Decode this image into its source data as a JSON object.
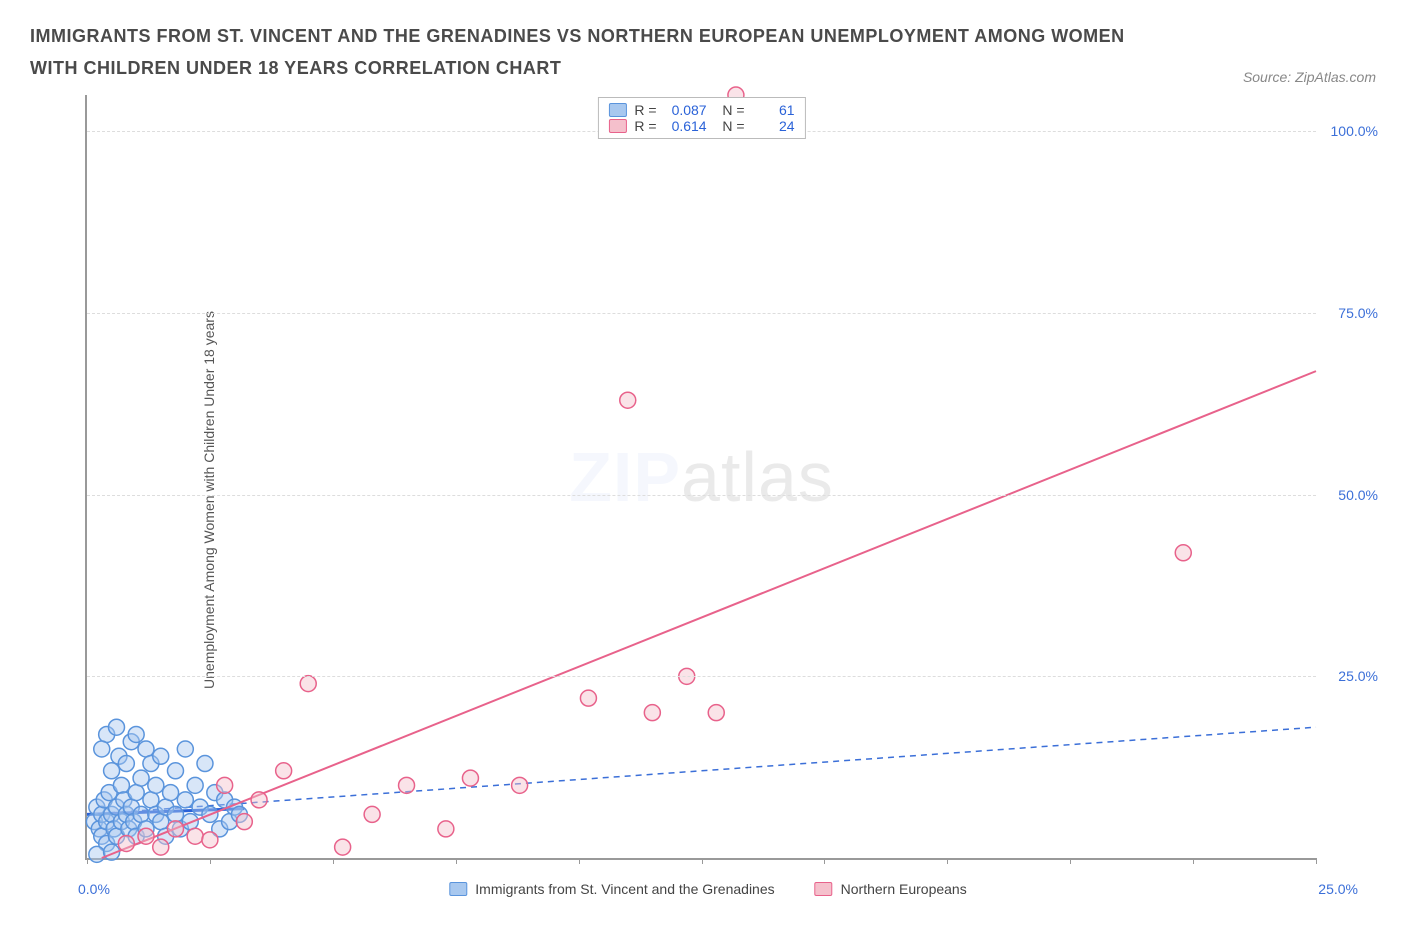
{
  "header": {
    "title": "IMMIGRANTS FROM ST. VINCENT AND THE GRENADINES VS NORTHERN EUROPEAN UNEMPLOYMENT AMONG WOMEN WITH CHILDREN UNDER 18 YEARS CORRELATION CHART",
    "source": "Source: ZipAtlas.com"
  },
  "chart": {
    "type": "scatter",
    "ylabel": "Unemployment Among Women with Children Under 18 years",
    "xlim": [
      0,
      25
    ],
    "ylim": [
      0,
      105
    ],
    "xticks": [
      0,
      2.5,
      5,
      7.5,
      10,
      12.5,
      15,
      17.5,
      20,
      22.5,
      25
    ],
    "yticks": [
      25,
      50,
      75,
      100
    ],
    "ytick_labels": [
      "25.0%",
      "50.0%",
      "75.0%",
      "100.0%"
    ],
    "x_min_label": "0.0%",
    "x_max_label": "25.0%",
    "background_color": "#ffffff",
    "grid_color": "#dddddd",
    "axis_color": "#999999",
    "marker_radius": 8,
    "marker_stroke_width": 1.5,
    "series": [
      {
        "name": "Immigrants from St. Vincent and the Grenadines",
        "color_fill": "#a8c8ef",
        "color_stroke": "#5a94dc",
        "fill_opacity": 0.45,
        "R": "0.087",
        "N": "61",
        "trend": {
          "x1": 0,
          "y1": 6,
          "x2": 25,
          "y2": 18,
          "dash": "6,5",
          "width": 1.5,
          "color": "#3b6fd8"
        },
        "trend_solid_short": {
          "x1": 0,
          "y1": 6,
          "x2": 3.2,
          "y2": 6.8,
          "width": 3,
          "color": "#2a62d8"
        },
        "points": [
          [
            0.15,
            5
          ],
          [
            0.2,
            7
          ],
          [
            0.25,
            4
          ],
          [
            0.3,
            6
          ],
          [
            0.3,
            3
          ],
          [
            0.35,
            8
          ],
          [
            0.4,
            5
          ],
          [
            0.4,
            2
          ],
          [
            0.45,
            9
          ],
          [
            0.5,
            6
          ],
          [
            0.5,
            12
          ],
          [
            0.55,
            4
          ],
          [
            0.6,
            7
          ],
          [
            0.6,
            3
          ],
          [
            0.65,
            14
          ],
          [
            0.7,
            5
          ],
          [
            0.7,
            10
          ],
          [
            0.75,
            8
          ],
          [
            0.8,
            6
          ],
          [
            0.8,
            13
          ],
          [
            0.85,
            4
          ],
          [
            0.9,
            16
          ],
          [
            0.9,
            7
          ],
          [
            0.95,
            5
          ],
          [
            1.0,
            9
          ],
          [
            1.0,
            3
          ],
          [
            1.1,
            11
          ],
          [
            1.1,
            6
          ],
          [
            1.2,
            15
          ],
          [
            1.2,
            4
          ],
          [
            1.3,
            8
          ],
          [
            1.3,
            13
          ],
          [
            1.4,
            6
          ],
          [
            1.4,
            10
          ],
          [
            1.5,
            5
          ],
          [
            1.5,
            14
          ],
          [
            1.6,
            7
          ],
          [
            1.6,
            3
          ],
          [
            1.7,
            9
          ],
          [
            1.8,
            6
          ],
          [
            1.8,
            12
          ],
          [
            1.9,
            4
          ],
          [
            2.0,
            8
          ],
          [
            2.0,
            15
          ],
          [
            2.1,
            5
          ],
          [
            2.2,
            10
          ],
          [
            2.3,
            7
          ],
          [
            2.4,
            13
          ],
          [
            2.5,
            6
          ],
          [
            2.6,
            9
          ],
          [
            2.7,
            4
          ],
          [
            2.8,
            8
          ],
          [
            2.9,
            5
          ],
          [
            3.0,
            7
          ],
          [
            3.1,
            6
          ],
          [
            0.4,
            17
          ],
          [
            0.6,
            18
          ],
          [
            1.0,
            17
          ],
          [
            0.3,
            15
          ],
          [
            0.2,
            0.5
          ],
          [
            0.5,
            0.8
          ]
        ]
      },
      {
        "name": "Northern Europeans",
        "color_fill": "#f5c0cc",
        "color_stroke": "#e8628b",
        "fill_opacity": 0.45,
        "R": "0.614",
        "N": "24",
        "trend": {
          "x1": 0.3,
          "y1": 0,
          "x2": 25,
          "y2": 67,
          "dash": "none",
          "width": 2,
          "color": "#e8628b"
        },
        "points": [
          [
            0.8,
            2
          ],
          [
            1.2,
            3
          ],
          [
            1.5,
            1.5
          ],
          [
            1.8,
            4
          ],
          [
            2.2,
            3
          ],
          [
            2.5,
            2.5
          ],
          [
            2.8,
            10
          ],
          [
            3.2,
            5
          ],
          [
            3.5,
            8
          ],
          [
            4.5,
            24
          ],
          [
            5.2,
            1.5
          ],
          [
            5.8,
            6
          ],
          [
            6.5,
            10
          ],
          [
            7.3,
            4
          ],
          [
            7.8,
            11
          ],
          [
            8.8,
            10
          ],
          [
            10.2,
            22
          ],
          [
            11.0,
            63
          ],
          [
            11.5,
            20
          ],
          [
            12.2,
            25
          ],
          [
            12.8,
            20
          ],
          [
            13.2,
            105
          ],
          [
            22.3,
            42
          ],
          [
            4.0,
            12
          ]
        ]
      }
    ],
    "legend_bottom": [
      {
        "label": "Immigrants from St. Vincent and the Grenadines",
        "fill": "#a8c8ef",
        "stroke": "#5a94dc"
      },
      {
        "label": "Northern Europeans",
        "fill": "#f5c0cc",
        "stroke": "#e8628b"
      }
    ],
    "watermark": {
      "bold": "ZIP",
      "rest": "atlas"
    }
  }
}
